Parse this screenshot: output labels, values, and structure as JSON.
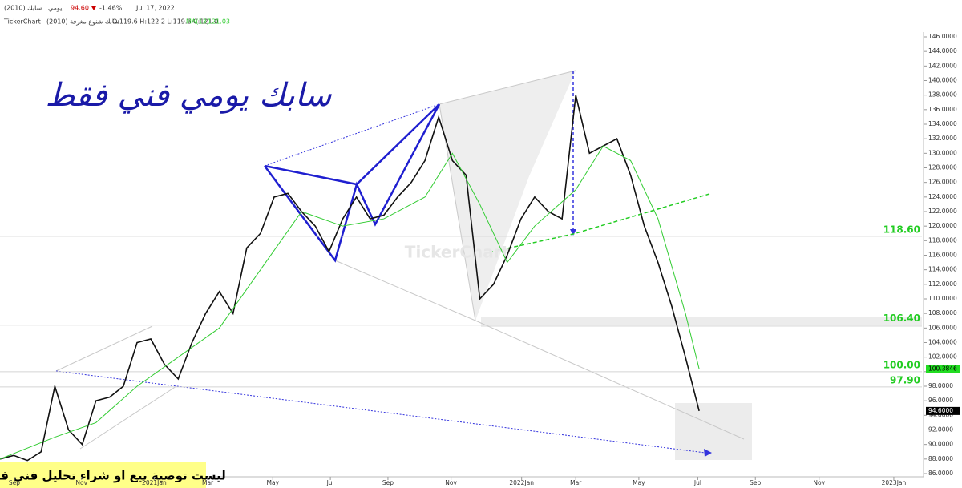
{
  "chart_data": {
    "type": "line",
    "symbol": "سابك (2010)",
    "period": "يومي",
    "price": "94.60",
    "change": "-1.46%",
    "date": "Jul 17, 2022",
    "app": "TickerChart",
    "name": "سابك شنوع مغرفة (2010)",
    "ohlc": "O:119.6 H:122.2 L:119.6 C:121.0",
    "ma_label": "MA(13)",
    "ma_value": "121.03",
    "title": "سابك يومي فني فقط",
    "disclaimer": "ليست توصية بيع او شراء تحليل فني فقط",
    "watermark": "TickerChart",
    "series": [
      {
        "color": "#111111",
        "x": [
          0,
          2,
          4,
          6,
          8,
          10,
          12,
          14,
          16,
          18,
          20,
          22,
          24,
          26,
          28,
          30,
          32,
          34,
          36,
          38,
          40,
          42,
          44,
          46,
          48,
          50,
          52,
          54,
          56,
          58,
          60,
          62,
          64,
          66,
          68,
          70,
          72,
          74,
          76,
          78,
          80,
          82,
          84,
          86,
          88,
          90,
          92,
          94,
          96,
          98,
          100,
          102
        ],
        "values": [
          88,
          88.5,
          87.8,
          89,
          98,
          92,
          90,
          96,
          96.5,
          98,
          104,
          104.5,
          101,
          99,
          104,
          108,
          111,
          108,
          117,
          119,
          124,
          124.5,
          122,
          120,
          116.5,
          121,
          124,
          121,
          121.5,
          124,
          126,
          129,
          135,
          129,
          127,
          110,
          112,
          116,
          121,
          124,
          122,
          121,
          138,
          130,
          131,
          132,
          127,
          120,
          115,
          109,
          102,
          94.6
        ]
      },
      {
        "color": "#33cc33",
        "x": [
          0,
          8,
          14,
          20,
          26,
          32,
          38,
          44,
          50,
          56,
          62,
          66,
          70,
          74,
          78,
          84,
          88,
          92,
          96,
          100,
          102
        ],
        "values": [
          88,
          91,
          93,
          98,
          102,
          106,
          114,
          122,
          120,
          121,
          124,
          130,
          123,
          115,
          120,
          125,
          131,
          129,
          121,
          108,
          100.3846
        ]
      }
    ],
    "levels": [
      {
        "value": 118.6,
        "label": "118.60"
      },
      {
        "value": 106.4,
        "label": "106.40"
      },
      {
        "value": 100,
        "label": "100.00"
      },
      {
        "value": 97.9,
        "label": "97.90"
      }
    ],
    "price_tags": [
      {
        "value": 100.3846,
        "label": "100.3846",
        "color": "#22dd22"
      },
      {
        "value": 94.6,
        "label": "94.6000",
        "color": "#000000"
      }
    ],
    "xlim": [
      0,
      134.5
    ],
    "ylim": [
      86,
      146
    ],
    "xticks": [
      {
        "value": 2.1,
        "label": "Sep"
      },
      {
        "value": 11.9,
        "label": "Nov"
      },
      {
        "value": 22.5,
        "label": "2021Jan"
      },
      {
        "value": 30.3,
        "label": "Mar"
      },
      {
        "value": 39.8,
        "label": "May"
      },
      {
        "value": 48.2,
        "label": "Jul"
      },
      {
        "value": 56.6,
        "label": "Sep"
      },
      {
        "value": 65.8,
        "label": "Nov"
      },
      {
        "value": 76.1,
        "label": "2022Jan"
      },
      {
        "value": 84,
        "label": "Mar"
      },
      {
        "value": 93.2,
        "label": "May"
      },
      {
        "value": 101.8,
        "label": "Jul"
      },
      {
        "value": 110.2,
        "label": "Sep"
      },
      {
        "value": 119.5,
        "label": "Nov"
      },
      {
        "value": 130.4,
        "label": "2023Jan"
      }
    ],
    "yticks": [
      {
        "value": 86,
        "label": "86.0000"
      },
      {
        "value": 88,
        "label": "88.0000"
      },
      {
        "value": 90,
        "label": "90.0000"
      },
      {
        "value": 92,
        "label": "92.0000"
      },
      {
        "value": 94,
        "label": "94.0000"
      },
      {
        "value": 96,
        "label": "96.0000"
      },
      {
        "value": 98,
        "label": "98.0000"
      },
      {
        "value": 100,
        "label": "100.0000"
      },
      {
        "value": 102,
        "label": "102.0000"
      },
      {
        "value": 104,
        "label": "104.0000"
      },
      {
        "value": 106,
        "label": "106.0000"
      },
      {
        "value": 108,
        "label": "108.0000"
      },
      {
        "value": 110,
        "label": "110.0000"
      },
      {
        "value": 112,
        "label": "112.0000"
      },
      {
        "value": 114,
        "label": "114.0000"
      },
      {
        "value": 116,
        "label": "116.0000"
      },
      {
        "value": 118,
        "label": "118.0000"
      },
      {
        "value": 120,
        "label": "120.0000"
      },
      {
        "value": 122,
        "label": "122.0000"
      },
      {
        "value": 124,
        "label": "124.0000"
      },
      {
        "value": 126,
        "label": "126.0000"
      },
      {
        "value": 128,
        "label": "128.0000"
      },
      {
        "value": 130,
        "label": "130.0000"
      },
      {
        "value": 132,
        "label": "132.0000"
      },
      {
        "value": 134,
        "label": "134.0000"
      },
      {
        "value": 136,
        "label": "136.0000"
      },
      {
        "value": 138,
        "label": "138.0000"
      },
      {
        "value": 140,
        "label": "140.0000"
      },
      {
        "value": 142,
        "label": "142.0000"
      },
      {
        "value": 144,
        "label": "144.0000"
      },
      {
        "value": 146,
        "label": "146.0000"
      }
    ],
    "level_color": "#22cc22"
  }
}
